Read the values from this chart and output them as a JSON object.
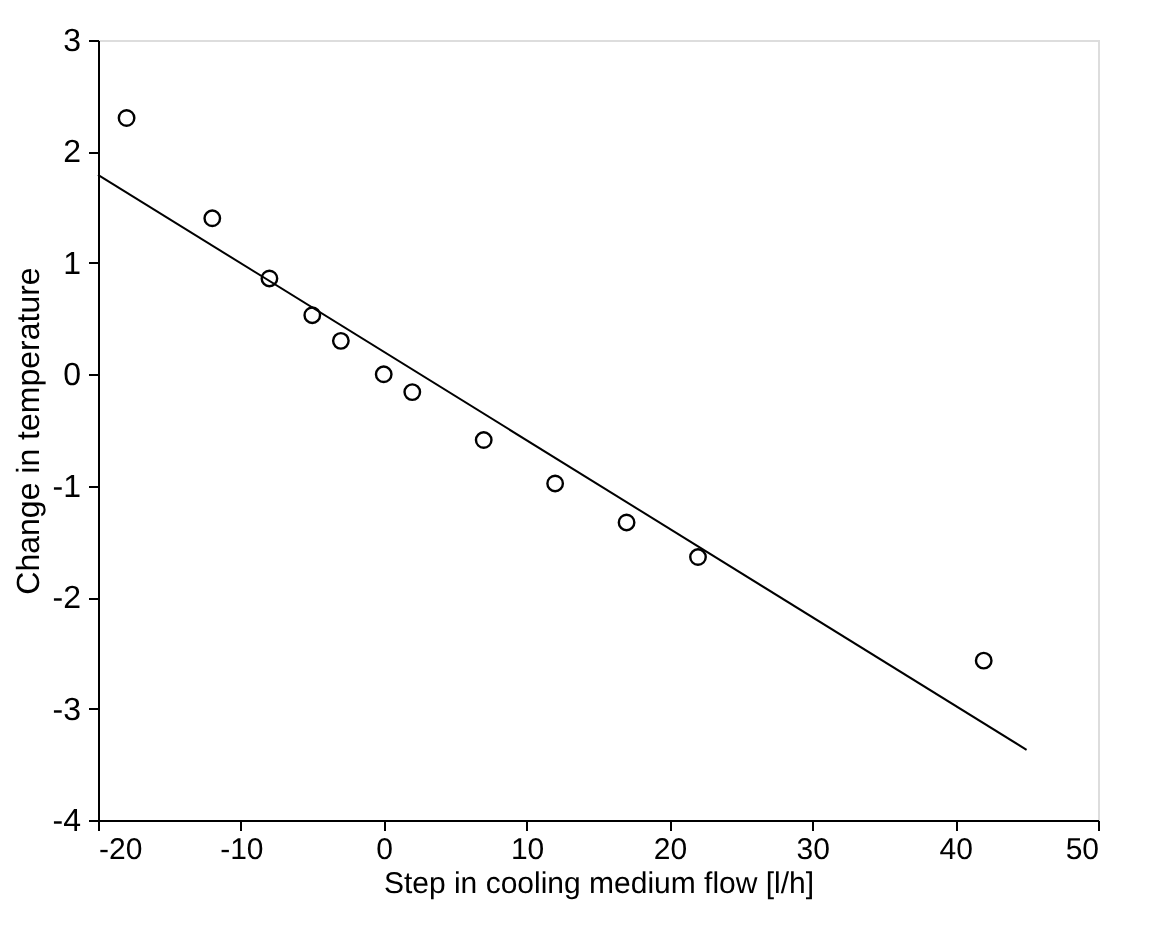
{
  "chart_data": {
    "type": "scatter",
    "xlabel": "Step in cooling medium flow [l/h]",
    "ylabel": "Change in temperature",
    "xlim": [
      -20,
      50
    ],
    "ylim": [
      -4,
      3
    ],
    "xticks": [
      -20,
      -10,
      0,
      10,
      20,
      30,
      40,
      50
    ],
    "yticks": [
      -4,
      -3,
      -2,
      -1,
      0,
      1,
      2,
      3
    ],
    "grid": false,
    "marker": "circle",
    "series": [
      {
        "type": "scatter",
        "color": "#000000",
        "x": [
          -18,
          -12,
          -8,
          -5,
          -3,
          0,
          2,
          7,
          12,
          17,
          22,
          42
        ],
        "values": [
          2.3,
          1.4,
          0.86,
          0.53,
          0.3,
          0,
          -0.16,
          -0.59,
          -0.98,
          -1.33,
          -1.64,
          -2.57
        ]
      },
      {
        "type": "line",
        "color": "#000000",
        "marker": "none",
        "line_style": "solid",
        "x": [
          -20,
          45
        ],
        "values": [
          1.79,
          -3.37
        ]
      }
    ]
  }
}
